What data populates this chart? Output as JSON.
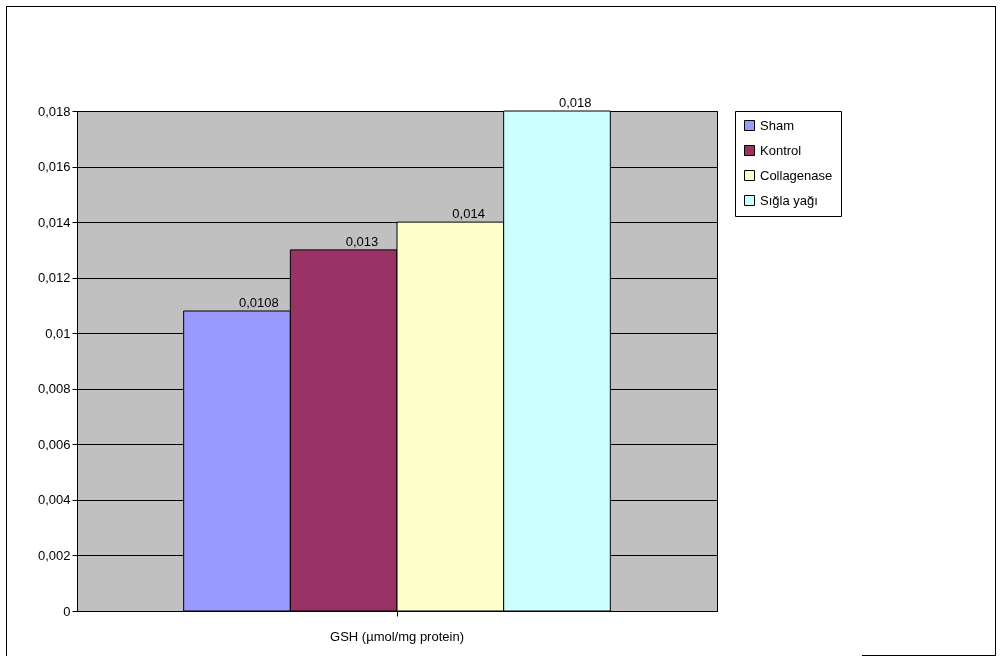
{
  "chart_data": {
    "type": "bar",
    "categories": [
      "GSH (µmol/mg protein)"
    ],
    "series": [
      {
        "name": "Sham",
        "color": "#9999ff",
        "values": [
          0.0108
        ],
        "value_labels": [
          "0,0108"
        ]
      },
      {
        "name": "Kontrol",
        "color": "#993366",
        "values": [
          0.013
        ],
        "value_labels": [
          "0,013"
        ]
      },
      {
        "name": "Collagenase",
        "color": "#ffffcc",
        "values": [
          0.014
        ],
        "value_labels": [
          "0,014"
        ]
      },
      {
        "name": "Sığla yağı",
        "color": "#ccffff",
        "values": [
          0.018
        ],
        "value_labels": [
          "0,018"
        ]
      }
    ],
    "ylim": [
      0,
      0.018
    ],
    "yticks": [
      0,
      {
        "value": 0.002,
        "label": "0,002"
      },
      {
        "value": 0.004,
        "label": "0,004"
      },
      {
        "value": 0.006,
        "label": "0,006"
      },
      {
        "value": 0.008,
        "label": "0,008"
      },
      {
        "value": 0.01,
        "label": "0,01"
      },
      {
        "value": 0.012,
        "label": "0,012"
      },
      {
        "value": 0.014,
        "label": "0,014"
      },
      {
        "value": 0.016,
        "label": "0,016"
      },
      {
        "value": 0.018,
        "label": "0,018"
      }
    ],
    "grid": true,
    "legend": "right"
  }
}
